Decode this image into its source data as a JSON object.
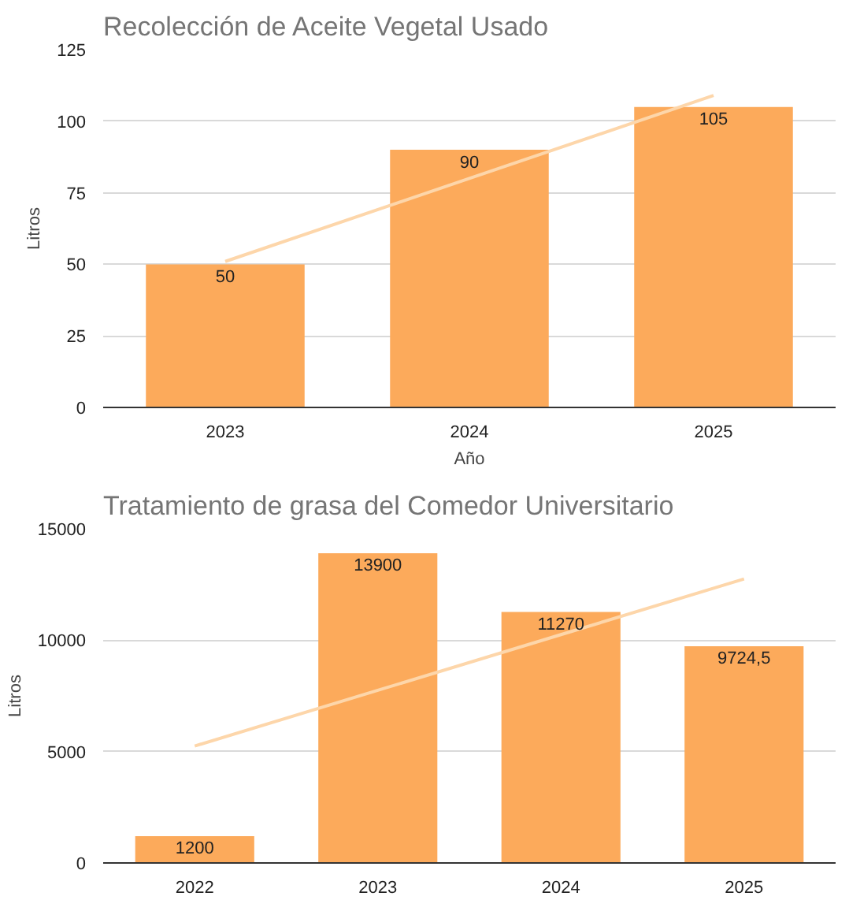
{
  "chart_data": [
    {
      "type": "bar",
      "title": "Recolección de Aceite Vegetal Usado",
      "xlabel": "Año",
      "ylabel": "Litros",
      "categories": [
        "2023",
        "2024",
        "2025"
      ],
      "ylim": [
        0,
        125
      ],
      "yticks": [
        0,
        25,
        50,
        75,
        100,
        125
      ],
      "grid": "y",
      "series": [
        {
          "color": "#fcaa5b",
          "values": [
            50,
            90,
            105
          ],
          "value_labels": [
            "50",
            "90",
            "105"
          ]
        },
        {
          "type": "line",
          "color": "#fdd6aa",
          "values": [
            51,
            80,
            109
          ]
        }
      ]
    },
    {
      "type": "bar",
      "title": "Tratamiento de grasa del Comedor Universitario",
      "ylabel": "Litros",
      "categories": [
        "2022",
        "2023",
        "2024",
        "2025"
      ],
      "ylim": [
        0,
        15000
      ],
      "yticks": [
        0,
        5000,
        10000,
        15000
      ],
      "grid": "y",
      "series": [
        {
          "color": "#fcaa5b",
          "values": [
            1200,
            13900,
            11270,
            9724.5
          ],
          "value_labels": [
            "1200",
            "13900",
            "11270",
            "9724,5"
          ]
        },
        {
          "type": "line",
          "color": "#fdd6aa",
          "values": [
            5250,
            7750,
            10250,
            12750
          ]
        }
      ]
    }
  ]
}
